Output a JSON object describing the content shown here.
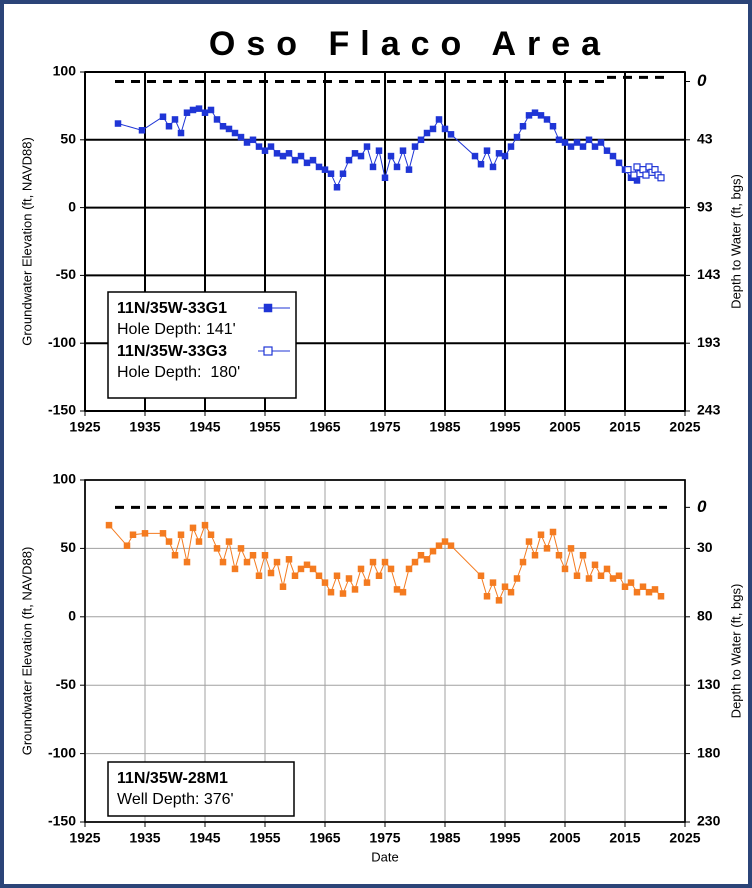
{
  "chart_data": [
    {
      "type": "line",
      "title": "Oso Flaco Area",
      "y_label": "Groundwater Elevation (ft, NAVD88)",
      "y2_label": "Depth to Water (ft, bgs)",
      "xlim": [
        1925,
        2025
      ],
      "xticks": [
        1925,
        1935,
        1945,
        1955,
        1965,
        1975,
        1985,
        1995,
        2005,
        2015,
        2025
      ],
      "ylim": [
        -150,
        100
      ],
      "yticks": [
        100,
        50,
        0,
        -50,
        -100,
        -150
      ],
      "y2lim": [
        243,
        -7
      ],
      "y2ticks": [
        0,
        43,
        93,
        143,
        193,
        243
      ],
      "grid": true,
      "grid_color": "#000000",
      "ground_lines": [
        {
          "x": [
            1930,
            2012
          ],
          "y": 93
        },
        {
          "x": [
            2012,
            2022
          ],
          "y": 96
        }
      ],
      "series": [
        {
          "name": "11N/35W-33G1",
          "note": "Hole Depth: 141'",
          "color": "#1f35d6",
          "marker": "filled",
          "x": [
            1930.5,
            1934.5,
            1938,
            1939,
            1940,
            1941,
            1942,
            1943,
            1944,
            1945,
            1946,
            1947,
            1948,
            1949,
            1950,
            1951,
            1952,
            1953,
            1954,
            1955,
            1956,
            1957,
            1958,
            1959,
            1960,
            1961,
            1962,
            1963,
            1964,
            1965,
            1966,
            1967,
            1968,
            1969,
            1970,
            1971,
            1972,
            1973,
            1974,
            1975,
            1976,
            1977,
            1978,
            1979,
            1980,
            1981,
            1982,
            1983,
            1984,
            1985,
            1986,
            1990,
            1991,
            1992,
            1993,
            1994,
            1995,
            1996,
            1997,
            1998,
            1999,
            2000,
            2001,
            2002,
            2003,
            2004,
            2005,
            2006,
            2007,
            2008,
            2009,
            2010,
            2011,
            2012,
            2013,
            2014,
            2015,
            2016,
            2017
          ],
          "values": [
            62,
            57,
            67,
            60,
            65,
            55,
            70,
            72,
            73,
            70,
            72,
            65,
            60,
            58,
            55,
            52,
            48,
            50,
            45,
            42,
            45,
            40,
            38,
            40,
            35,
            38,
            33,
            35,
            30,
            28,
            25,
            15,
            25,
            35,
            40,
            38,
            45,
            30,
            42,
            22,
            38,
            30,
            42,
            28,
            45,
            50,
            55,
            58,
            65,
            58,
            54,
            38,
            32,
            42,
            30,
            40,
            38,
            45,
            52,
            60,
            68,
            70,
            68,
            65,
            60,
            50,
            48,
            45,
            48,
            45,
            50,
            45,
            48,
            42,
            38,
            33,
            28,
            22,
            20
          ]
        },
        {
          "name": "11N/35W-33G3",
          "note": "Hole Depth:  180'",
          "color": "#1f35d6",
          "marker": "open",
          "x": [
            2015.5,
            2016.5,
            2017,
            2017.5,
            2018,
            2018.5,
            2019,
            2019.5,
            2020,
            2020.5,
            2021
          ],
          "values": [
            28,
            24,
            30,
            25,
            28,
            24,
            30,
            26,
            28,
            24,
            22
          ]
        }
      ]
    },
    {
      "type": "line",
      "x_label": "Date",
      "y_label": "Groundwater Elevation (ft, NAVD88)",
      "y2_label": "Depth to Water (ft, bgs)",
      "xlim": [
        1925,
        2025
      ],
      "xticks": [
        1925,
        1935,
        1945,
        1955,
        1965,
        1975,
        1985,
        1995,
        2005,
        2015,
        2025
      ],
      "ylim": [
        -150,
        100
      ],
      "yticks": [
        100,
        50,
        0,
        -50,
        -100,
        -150
      ],
      "y2lim": [
        230,
        -20
      ],
      "y2ticks": [
        0,
        30,
        80,
        130,
        180,
        230
      ],
      "grid": true,
      "grid_color": "#a0a0a0",
      "ground_lines": [
        {
          "x": [
            1930,
            2022
          ],
          "y": 80
        }
      ],
      "series": [
        {
          "name": "11N/35W-28M1",
          "note": "Well Depth: 376'",
          "color": "#f47b20",
          "marker": "filled",
          "x": [
            1929,
            1932,
            1933,
            1935,
            1938,
            1939,
            1940,
            1941,
            1942,
            1943,
            1944,
            1945,
            1946,
            1947,
            1948,
            1949,
            1950,
            1951,
            1952,
            1953,
            1954,
            1955,
            1956,
            1957,
            1958,
            1959,
            1960,
            1961,
            1962,
            1963,
            1964,
            1965,
            1966,
            1967,
            1968,
            1969,
            1970,
            1971,
            1972,
            1973,
            1974,
            1975,
            1976,
            1977,
            1978,
            1979,
            1980,
            1981,
            1982,
            1983,
            1984,
            1985,
            1986,
            1991,
            1992,
            1993,
            1994,
            1995,
            1996,
            1997,
            1998,
            1999,
            2000,
            2001,
            2002,
            2003,
            2004,
            2005,
            2006,
            2007,
            2008,
            2009,
            2010,
            2011,
            2012,
            2013,
            2014,
            2015,
            2016,
            2017,
            2018,
            2019,
            2020,
            2021
          ],
          "values": [
            67,
            52,
            60,
            61,
            61,
            55,
            45,
            60,
            40,
            65,
            55,
            67,
            60,
            50,
            40,
            55,
            35,
            50,
            40,
            45,
            30,
            45,
            32,
            40,
            22,
            42,
            30,
            35,
            38,
            35,
            30,
            25,
            18,
            30,
            17,
            28,
            20,
            35,
            25,
            40,
            30,
            40,
            35,
            20,
            18,
            35,
            40,
            45,
            42,
            48,
            52,
            55,
            52,
            30,
            15,
            25,
            12,
            22,
            18,
            28,
            40,
            55,
            45,
            60,
            50,
            62,
            45,
            35,
            50,
            30,
            45,
            28,
            38,
            30,
            35,
            28,
            30,
            22,
            25,
            18,
            22,
            18,
            20,
            15
          ]
        }
      ]
    }
  ]
}
